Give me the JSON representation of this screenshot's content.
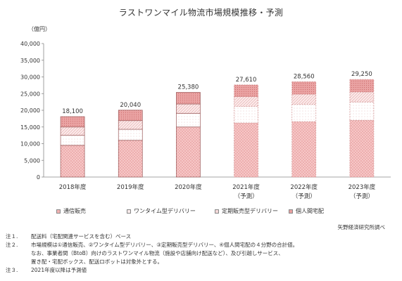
{
  "title": "ラストワンマイル物流市場規模推移・予測",
  "chart_data": {
    "type": "bar",
    "stacked": true,
    "unit_label": "（億円）",
    "ylim": [
      0,
      40000
    ],
    "yticks": [
      "0",
      "5,000",
      "10,000",
      "15,000",
      "20,000",
      "25,000",
      "30,000",
      "35,000",
      "40,000"
    ],
    "categories": [
      {
        "line1": "2018年度",
        "line2": ""
      },
      {
        "line1": "2019年度",
        "line2": ""
      },
      {
        "line1": "2020年度",
        "line2": ""
      },
      {
        "line1": "2021年度",
        "line2": "（予測）"
      },
      {
        "line1": "2022年度",
        "line2": "（予測）"
      },
      {
        "line1": "2023年度",
        "line2": "（予測）"
      }
    ],
    "forecast": [
      false,
      false,
      false,
      true,
      true,
      true
    ],
    "totals": [
      "18,100",
      "20,040",
      "25,380",
      "27,610",
      "28,560",
      "29,250"
    ],
    "total_values": [
      18100,
      20040,
      25380,
      27610,
      28560,
      29250
    ],
    "series": [
      {
        "name": "通信販売",
        "values": [
          9500,
          11000,
          15000,
          16200,
          16600,
          17000
        ]
      },
      {
        "name": "ワンタイム型デリバリー",
        "values": [
          3000,
          3300,
          4100,
          5000,
          5200,
          5500
        ]
      },
      {
        "name": "定期販売型デリバリー",
        "values": [
          2500,
          2600,
          2800,
          2900,
          3000,
          3000
        ]
      },
      {
        "name": "個人間宅配",
        "values": [
          3100,
          3140,
          3480,
          3510,
          3760,
          3750
        ]
      }
    ],
    "grid": false,
    "legend_position": "bottom"
  },
  "colors": {
    "border": "#9a5a5a",
    "series": [
      "#f2b3b3",
      "#f7eaea",
      "#f4d9d9",
      "#e9a0a0"
    ],
    "forecast_border": "#d08a8a"
  },
  "source": "矢野経済研究所調べ",
  "notes": [
    {
      "label": "注１.",
      "lines": [
        "配送料（宅配関連サービスを含む）ベース"
      ]
    },
    {
      "label": "注２.",
      "lines": [
        "市場規模は①通信販売、②ワンタイム型デリバリー、③定期販売型デリバリー、④個人間宅配の４分野の合計値。",
        "なお、事業者間（BtoB）向けのラストワンマイル物流（施設や店舗向け配送など）、及び引越しサービス、",
        "置き配・宅配ボックス、配送ロボットは対象外とする。"
      ]
    },
    {
      "label": "注３.",
      "lines": [
        "2021年度以降は予測値"
      ]
    }
  ]
}
